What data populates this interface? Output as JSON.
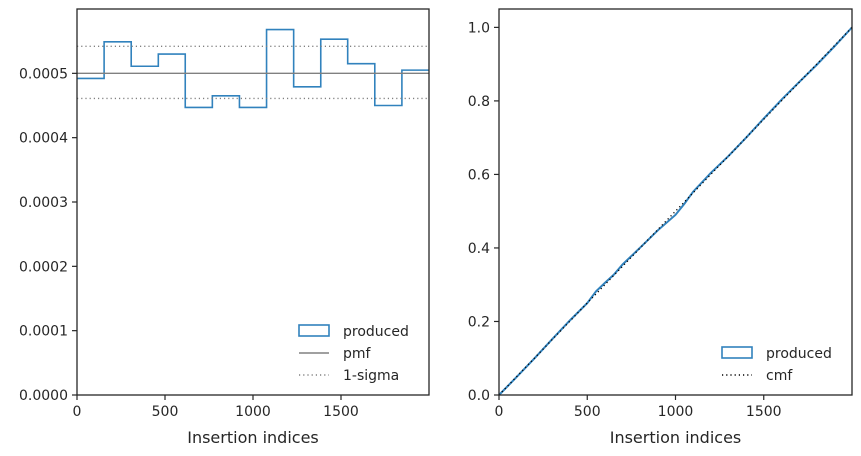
{
  "chart_data": [
    {
      "type": "line",
      "title": "",
      "xlabel": "Insertion indices",
      "ylabel": "",
      "xlim": [
        0,
        2000
      ],
      "ylim": [
        0,
        0.0006
      ],
      "xticks": [
        0,
        500,
        1000,
        1500
      ],
      "xtick_labels": [
        "0",
        "500",
        "1000",
        "1500"
      ],
      "yticks": [
        0,
        0.0001,
        0.0002,
        0.0003,
        0.0004,
        0.0005
      ],
      "ytick_labels": [
        "0.0000",
        "0.0001",
        "0.0002",
        "0.0003",
        "0.0004",
        "0.0005"
      ],
      "grid": false,
      "legend_position": "bottom-right",
      "series": [
        {
          "name": "produced",
          "style": "step",
          "color": "#3182bd",
          "bin_edges": [
            0,
            154,
            308,
            462,
            615,
            769,
            923,
            1077,
            1231,
            1385,
            1538,
            1692,
            1846,
            2000
          ],
          "values": [
            0.000492,
            0.000549,
            0.000511,
            0.00053,
            0.000447,
            0.000465,
            0.000447,
            0.000568,
            0.000479,
            0.000553,
            0.000515,
            0.00045,
            0.000505
          ]
        },
        {
          "name": "pmf",
          "style": "solid",
          "color": "#808080",
          "x": [
            0,
            2000
          ],
          "y": [
            0.0005,
            0.0005
          ]
        },
        {
          "name": "1-sigma",
          "style": "dotted",
          "color": "#808080",
          "x": [
            0,
            2000
          ],
          "y": [
            0.000542,
            0.000542
          ]
        },
        {
          "name": "",
          "style": "dotted",
          "color": "#808080",
          "x": [
            0,
            2000
          ],
          "y": [
            0.000461,
            0.000461
          ]
        }
      ]
    },
    {
      "type": "line",
      "title": "",
      "xlabel": "Insertion indices",
      "ylabel": "",
      "xlim": [
        0,
        2000
      ],
      "ylim": [
        0,
        1.05
      ],
      "xticks": [
        0,
        500,
        1000,
        1500
      ],
      "xtick_labels": [
        "0",
        "500",
        "1000",
        "1500"
      ],
      "yticks": [
        0,
        0.2,
        0.4,
        0.6,
        0.8,
        1.0
      ],
      "ytick_labels": [
        "0.0",
        "0.2",
        "0.4",
        "0.6",
        "0.8",
        "1.0"
      ],
      "grid": false,
      "legend_position": "bottom-right",
      "series": [
        {
          "name": "produced",
          "style": "solid",
          "color": "#3182bd",
          "x": [
            0,
            100,
            200,
            300,
            400,
            500,
            550,
            600,
            650,
            700,
            800,
            900,
            1000,
            1050,
            1100,
            1200,
            1300,
            1400,
            1500,
            1600,
            1700,
            1800,
            1900,
            2000
          ],
          "y": [
            0,
            0.049,
            0.099,
            0.151,
            0.202,
            0.25,
            0.282,
            0.305,
            0.327,
            0.355,
            0.401,
            0.448,
            0.49,
            0.52,
            0.553,
            0.604,
            0.65,
            0.7,
            0.752,
            0.803,
            0.851,
            0.898,
            0.948,
            1.0
          ]
        },
        {
          "name": "cmf",
          "style": "dotted",
          "color": "#000000",
          "x": [
            0,
            2000
          ],
          "y": [
            0,
            1.0
          ]
        }
      ]
    }
  ]
}
